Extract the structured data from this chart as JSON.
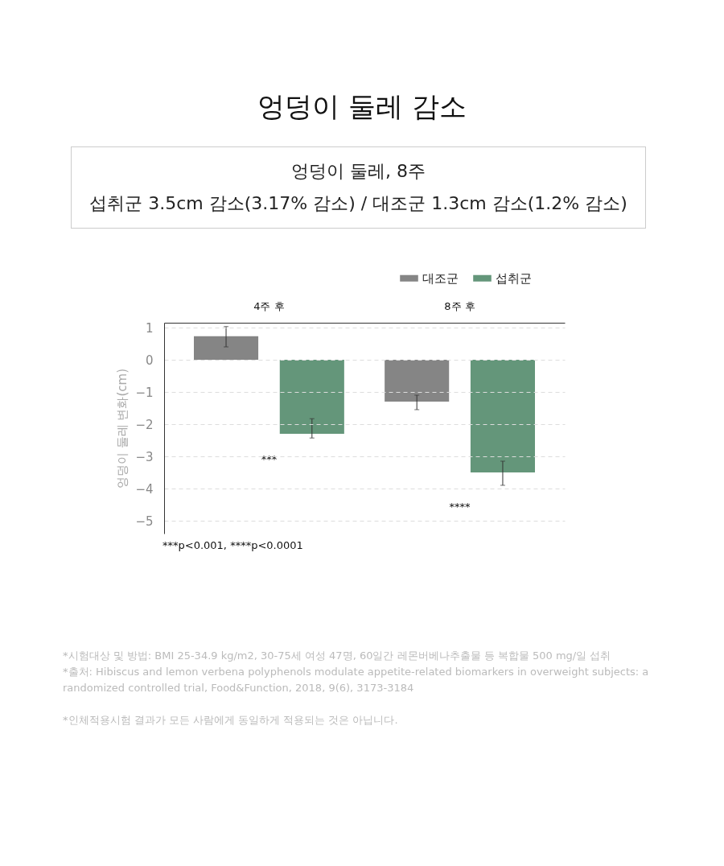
{
  "chart_data": {
    "type": "bar",
    "title": "엉덩이 둘레 감소",
    "subtitle": "엉덩이 둘레, 8주\n섭취군 3.5cm 감소(3.17% 감소) / 대조군 1.3cm 감소(1.2% 감소)",
    "ylabel": "엉덩이 둘레 변화(cm)",
    "categories": [
      "4주 후",
      "8주 후"
    ],
    "series": [
      {
        "name": "대조군",
        "color": "#858585",
        "values": [
          0.73,
          -1.3
        ],
        "errors": [
          [
            0.4,
            1.03
          ],
          [
            -1.55,
            -1.1
          ]
        ]
      },
      {
        "name": "섭취군",
        "color": "#64967a",
        "values": [
          -2.3,
          -3.5
        ],
        "errors": [
          [
            -2.43,
            -1.83
          ],
          [
            -3.9,
            -3.15
          ]
        ]
      }
    ],
    "ylim": [
      -5.4,
      1.15
    ],
    "yticks": [
      -5,
      -4,
      -3,
      -2,
      -1,
      0,
      1
    ],
    "grid": "y",
    "legend": "top right",
    "annotations": [
      "***",
      "****",
      "***p<0.001, ****p<0.0001",
      "*시험대상 및 방법: BMI 25-34.9 kg/m2, 30-75세 여성 47명, 60일간 레몬버베나추출물 등 복합물 500 mg/일 섭취",
      "*출처: Hibiscus and lemon verbena polyphenols modulate appetite-related biomarkers in overweight subjects: a randomized controlled trial, Food&Function, 2018, 9(6), 3173-3184",
      "*인체적용시험 결과가 모든 사람에게 동일하게 적용되는 것은 아닙니다."
    ]
  }
}
